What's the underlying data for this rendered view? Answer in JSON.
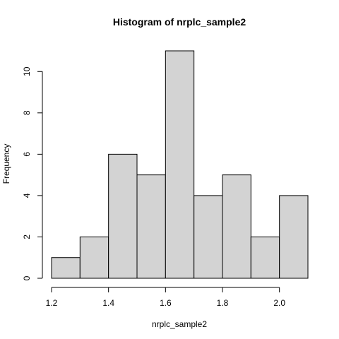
{
  "chart_data": {
    "type": "bar",
    "title": "Histogram of nrplc_sample2",
    "xlabel": "nrplc_sample2",
    "ylabel": "Frequency",
    "bins": [
      {
        "from": 1.2,
        "to": 1.3,
        "count": 1
      },
      {
        "from": 1.3,
        "to": 1.4,
        "count": 2
      },
      {
        "from": 1.4,
        "to": 1.5,
        "count": 6
      },
      {
        "from": 1.5,
        "to": 1.6,
        "count": 5
      },
      {
        "from": 1.6,
        "to": 1.7,
        "count": 11
      },
      {
        "from": 1.7,
        "to": 1.8,
        "count": 4
      },
      {
        "from": 1.8,
        "to": 1.9,
        "count": 5
      },
      {
        "from": 1.9,
        "to": 2.0,
        "count": 2
      },
      {
        "from": 2.0,
        "to": 2.1,
        "count": 4
      }
    ],
    "xlim": [
      1.2,
      2.1
    ],
    "ylim": [
      0,
      11
    ],
    "xticks": [
      1.2,
      1.4,
      1.6,
      1.8,
      2.0
    ],
    "xtick_labels": [
      "1.2",
      "1.4",
      "1.6",
      "1.8",
      "2.0"
    ],
    "yticks": [
      0,
      2,
      4,
      6,
      8,
      10
    ],
    "ytick_labels": [
      "0",
      "2",
      "4",
      "6",
      "8",
      "10"
    ],
    "bar_fill": "#d3d3d3",
    "grid": false,
    "legend": "none"
  }
}
